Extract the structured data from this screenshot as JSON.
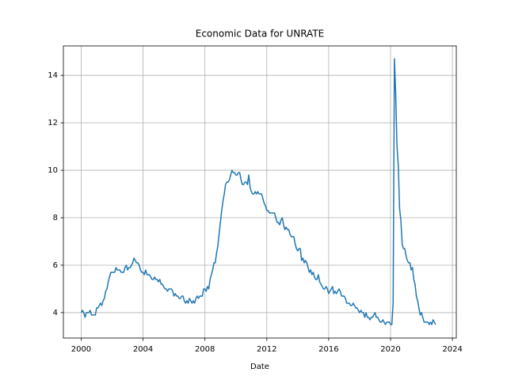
{
  "chart_data": {
    "type": "line",
    "title": "Economic Data for UNRATE",
    "x_label": "Date",
    "color": "#1f77b4",
    "grid": true,
    "xlim": [
      1998.85,
      2024.25
    ],
    "xticks": [
      2000,
      2004,
      2008,
      2012,
      2016,
      2020,
      2024
    ],
    "ylim": [
      2.93,
      15.24
    ],
    "yticks": [
      4,
      6,
      8,
      10,
      12,
      14
    ],
    "x": [
      2000,
      2000.083,
      2000.167,
      2000.25,
      2000.333,
      2000.417,
      2000.5,
      2000.583,
      2000.667,
      2000.75,
      2000.833,
      2000.917,
      2001,
      2001.083,
      2001.167,
      2001.25,
      2001.333,
      2001.417,
      2001.5,
      2001.583,
      2001.667,
      2001.75,
      2001.833,
      2001.917,
      2002,
      2002.083,
      2002.167,
      2002.25,
      2002.333,
      2002.417,
      2002.5,
      2002.583,
      2002.667,
      2002.75,
      2002.833,
      2002.917,
      2003,
      2003.083,
      2003.167,
      2003.25,
      2003.333,
      2003.417,
      2003.5,
      2003.583,
      2003.667,
      2003.75,
      2003.833,
      2003.917,
      2004,
      2004.083,
      2004.167,
      2004.25,
      2004.333,
      2004.417,
      2004.5,
      2004.583,
      2004.667,
      2004.75,
      2004.833,
      2004.917,
      2005,
      2005.083,
      2005.167,
      2005.25,
      2005.333,
      2005.417,
      2005.5,
      2005.583,
      2005.667,
      2005.75,
      2005.833,
      2005.917,
      2006,
      2006.083,
      2006.167,
      2006.25,
      2006.333,
      2006.417,
      2006.5,
      2006.583,
      2006.667,
      2006.75,
      2006.833,
      2006.917,
      2007,
      2007.083,
      2007.167,
      2007.25,
      2007.333,
      2007.417,
      2007.5,
      2007.583,
      2007.667,
      2007.75,
      2007.833,
      2007.917,
      2008,
      2008.083,
      2008.167,
      2008.25,
      2008.333,
      2008.417,
      2008.5,
      2008.583,
      2008.667,
      2008.75,
      2008.833,
      2008.917,
      2009,
      2009.083,
      2009.167,
      2009.25,
      2009.333,
      2009.417,
      2009.5,
      2009.583,
      2009.667,
      2009.75,
      2009.833,
      2009.917,
      2010,
      2010.083,
      2010.167,
      2010.25,
      2010.333,
      2010.417,
      2010.5,
      2010.583,
      2010.667,
      2010.75,
      2010.833,
      2010.917,
      2011,
      2011.083,
      2011.167,
      2011.25,
      2011.333,
      2011.417,
      2011.5,
      2011.583,
      2011.667,
      2011.75,
      2011.833,
      2011.917,
      2012,
      2012.083,
      2012.167,
      2012.25,
      2012.333,
      2012.417,
      2012.5,
      2012.583,
      2012.667,
      2012.75,
      2012.833,
      2012.917,
      2013,
      2013.083,
      2013.167,
      2013.25,
      2013.333,
      2013.417,
      2013.5,
      2013.583,
      2013.667,
      2013.75,
      2013.833,
      2013.917,
      2014,
      2014.083,
      2014.167,
      2014.25,
      2014.333,
      2014.417,
      2014.5,
      2014.583,
      2014.667,
      2014.75,
      2014.833,
      2014.917,
      2015,
      2015.083,
      2015.167,
      2015.25,
      2015.333,
      2015.417,
      2015.5,
      2015.583,
      2015.667,
      2015.75,
      2015.833,
      2015.917,
      2016,
      2016.083,
      2016.167,
      2016.25,
      2016.333,
      2016.417,
      2016.5,
      2016.583,
      2016.667,
      2016.75,
      2016.833,
      2016.917,
      2017,
      2017.083,
      2017.167,
      2017.25,
      2017.333,
      2017.417,
      2017.5,
      2017.583,
      2017.667,
      2017.75,
      2017.833,
      2017.917,
      2018,
      2018.083,
      2018.167,
      2018.25,
      2018.333,
      2018.417,
      2018.5,
      2018.583,
      2018.667,
      2018.75,
      2018.833,
      2018.917,
      2019,
      2019.083,
      2019.167,
      2019.25,
      2019.333,
      2019.417,
      2019.5,
      2019.583,
      2019.667,
      2019.75,
      2019.833,
      2019.917,
      2020,
      2020.083,
      2020.167,
      2020.25,
      2020.333,
      2020.417,
      2020.5,
      2020.583,
      2020.667,
      2020.75,
      2020.833,
      2020.917,
      2021,
      2021.083,
      2021.167,
      2021.25,
      2021.333,
      2021.417,
      2021.5,
      2021.583,
      2021.667,
      2021.75,
      2021.833,
      2021.917,
      2022,
      2022.083,
      2022.167,
      2022.25,
      2022.333,
      2022.417,
      2022.5,
      2022.583,
      2022.667,
      2022.75,
      2022.833,
      2022.917
    ],
    "values": [
      4.0,
      4.1,
      4.0,
      3.8,
      4.0,
      4.0,
      4.0,
      4.1,
      3.9,
      3.9,
      3.9,
      3.9,
      4.2,
      4.2,
      4.3,
      4.4,
      4.3,
      4.5,
      4.6,
      4.9,
      5.0,
      5.3,
      5.5,
      5.7,
      5.7,
      5.7,
      5.7,
      5.9,
      5.8,
      5.8,
      5.8,
      5.7,
      5.7,
      5.7,
      5.9,
      6.0,
      5.8,
      5.9,
      5.9,
      6.0,
      6.1,
      6.3,
      6.2,
      6.1,
      6.1,
      6.0,
      5.8,
      5.7,
      5.7,
      5.6,
      5.8,
      5.6,
      5.6,
      5.6,
      5.5,
      5.4,
      5.4,
      5.5,
      5.4,
      5.4,
      5.3,
      5.4,
      5.2,
      5.2,
      5.1,
      5.0,
      5.0,
      4.9,
      5.0,
      5.0,
      5.0,
      4.9,
      4.7,
      4.8,
      4.7,
      4.7,
      4.6,
      4.6,
      4.7,
      4.7,
      4.5,
      4.4,
      4.5,
      4.4,
      4.6,
      4.5,
      4.4,
      4.5,
      4.4,
      4.6,
      4.7,
      4.6,
      4.7,
      4.7,
      4.7,
      5.0,
      5.0,
      4.9,
      5.1,
      5.0,
      5.4,
      5.6,
      5.8,
      6.1,
      6.1,
      6.5,
      6.8,
      7.3,
      7.8,
      8.3,
      8.7,
      9.0,
      9.4,
      9.5,
      9.5,
      9.6,
      9.8,
      10.0,
      9.9,
      9.9,
      9.8,
      9.8,
      9.9,
      9.9,
      9.6,
      9.4,
      9.4,
      9.5,
      9.5,
      9.4,
      9.8,
      9.3,
      9.1,
      9.0,
      9.0,
      9.1,
      9.0,
      9.1,
      9.0,
      9.0,
      9.0,
      8.8,
      8.6,
      8.5,
      8.3,
      8.3,
      8.2,
      8.2,
      8.2,
      8.2,
      8.2,
      8.0,
      7.8,
      7.8,
      7.7,
      7.9,
      8.0,
      7.7,
      7.5,
      7.6,
      7.5,
      7.5,
      7.3,
      7.2,
      7.2,
      7.2,
      6.9,
      6.7,
      6.6,
      6.7,
      6.7,
      6.2,
      6.3,
      6.1,
      6.2,
      6.1,
      5.9,
      5.7,
      5.8,
      5.6,
      5.7,
      5.5,
      5.4,
      5.4,
      5.6,
      5.3,
      5.2,
      5.1,
      5.0,
      5.0,
      5.1,
      5.0,
      4.8,
      4.9,
      5.0,
      5.1,
      4.8,
      4.9,
      4.8,
      4.9,
      5.0,
      4.9,
      4.7,
      4.7,
      4.7,
      4.6,
      4.4,
      4.4,
      4.4,
      4.3,
      4.3,
      4.4,
      4.3,
      4.2,
      4.2,
      4.1,
      4.0,
      4.1,
      4.0,
      4.0,
      3.8,
      4.0,
      3.8,
      3.8,
      3.7,
      3.8,
      3.8,
      3.9,
      4.0,
      3.8,
      3.8,
      3.7,
      3.6,
      3.6,
      3.7,
      3.6,
      3.5,
      3.6,
      3.6,
      3.6,
      3.5,
      3.5,
      4.4,
      14.7,
      13.2,
      11.0,
      10.2,
      8.4,
      7.9,
      6.9,
      6.7,
      6.7,
      6.4,
      6.2,
      6.1,
      6.1,
      5.8,
      5.9,
      5.4,
      5.2,
      4.7,
      4.5,
      4.2,
      3.9,
      4.0,
      3.8,
      3.6,
      3.6,
      3.6,
      3.6,
      3.5,
      3.6,
      3.5,
      3.7,
      3.6,
      3.5
    ]
  }
}
